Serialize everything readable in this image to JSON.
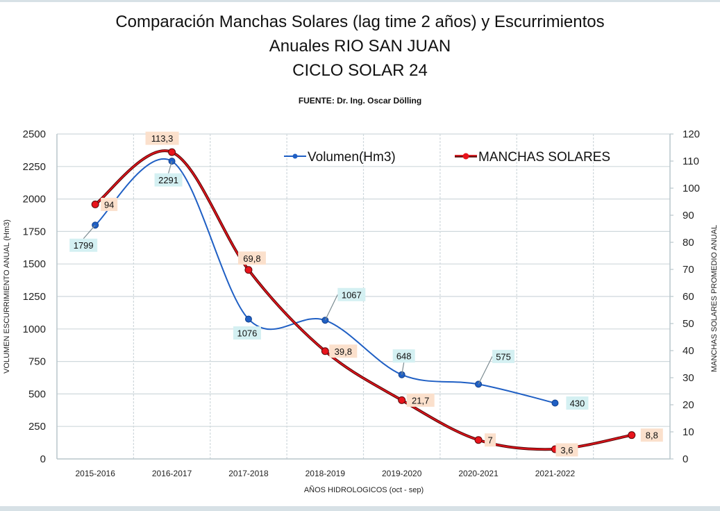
{
  "chart_data": {
    "type": "line",
    "title_lines": [
      "Comparación Manchas Solares (lag time 2 años)  y Escurrimientos",
      "Anuales RIO SAN JUAN",
      "CICLO SOLAR 24"
    ],
    "subtitle": "FUENTE: Dr. Ing. Oscar Dölling",
    "xlabel": "AÑOS HIDROLOGICOS (oct - sep)",
    "ylabel": "VOLUMEN ESCURRIMIENTO ANUAL (Hm3)",
    "y2label": "MANCHAS SOLARES PROMEDIO ANUAL",
    "categories": [
      "2015-2016",
      "2016-2017",
      "2017-2018",
      "2018-2019",
      "2019-2020",
      "2020-2021",
      "2021-2022",
      ""
    ],
    "ylim": [
      0,
      2500
    ],
    "yticks": [
      0,
      250,
      500,
      750,
      1000,
      1250,
      1500,
      1750,
      2000,
      2250,
      2500
    ],
    "y2lim": [
      0,
      120
    ],
    "y2ticks": [
      0,
      10,
      20,
      30,
      40,
      50,
      60,
      70,
      80,
      90,
      100,
      110,
      120
    ],
    "grid": true,
    "smooth": true,
    "legend_position": "top-right",
    "series": [
      {
        "name": "Volumen(Hm3)",
        "axis": "left",
        "color": "#1f5fc4",
        "label_bg": "#d4f0f2",
        "values": [
          1799,
          2291,
          1076,
          1067,
          648,
          575,
          430,
          null
        ],
        "labels": [
          "1799",
          "2291",
          "1076",
          "1067",
          "648",
          "575",
          "430",
          ""
        ]
      },
      {
        "name": "MANCHAS SOLARES",
        "axis": "right",
        "color": "#e8141c",
        "line_shadow": "#5a0a0a",
        "label_bg": "#fbe0cc",
        "values": [
          94,
          113.3,
          69.8,
          39.8,
          21.7,
          7,
          3.6,
          8.8
        ],
        "labels": [
          "94",
          "113,3",
          "69,8",
          "39,8",
          "21,7",
          "7",
          "3,6",
          "8,8"
        ]
      }
    ]
  }
}
